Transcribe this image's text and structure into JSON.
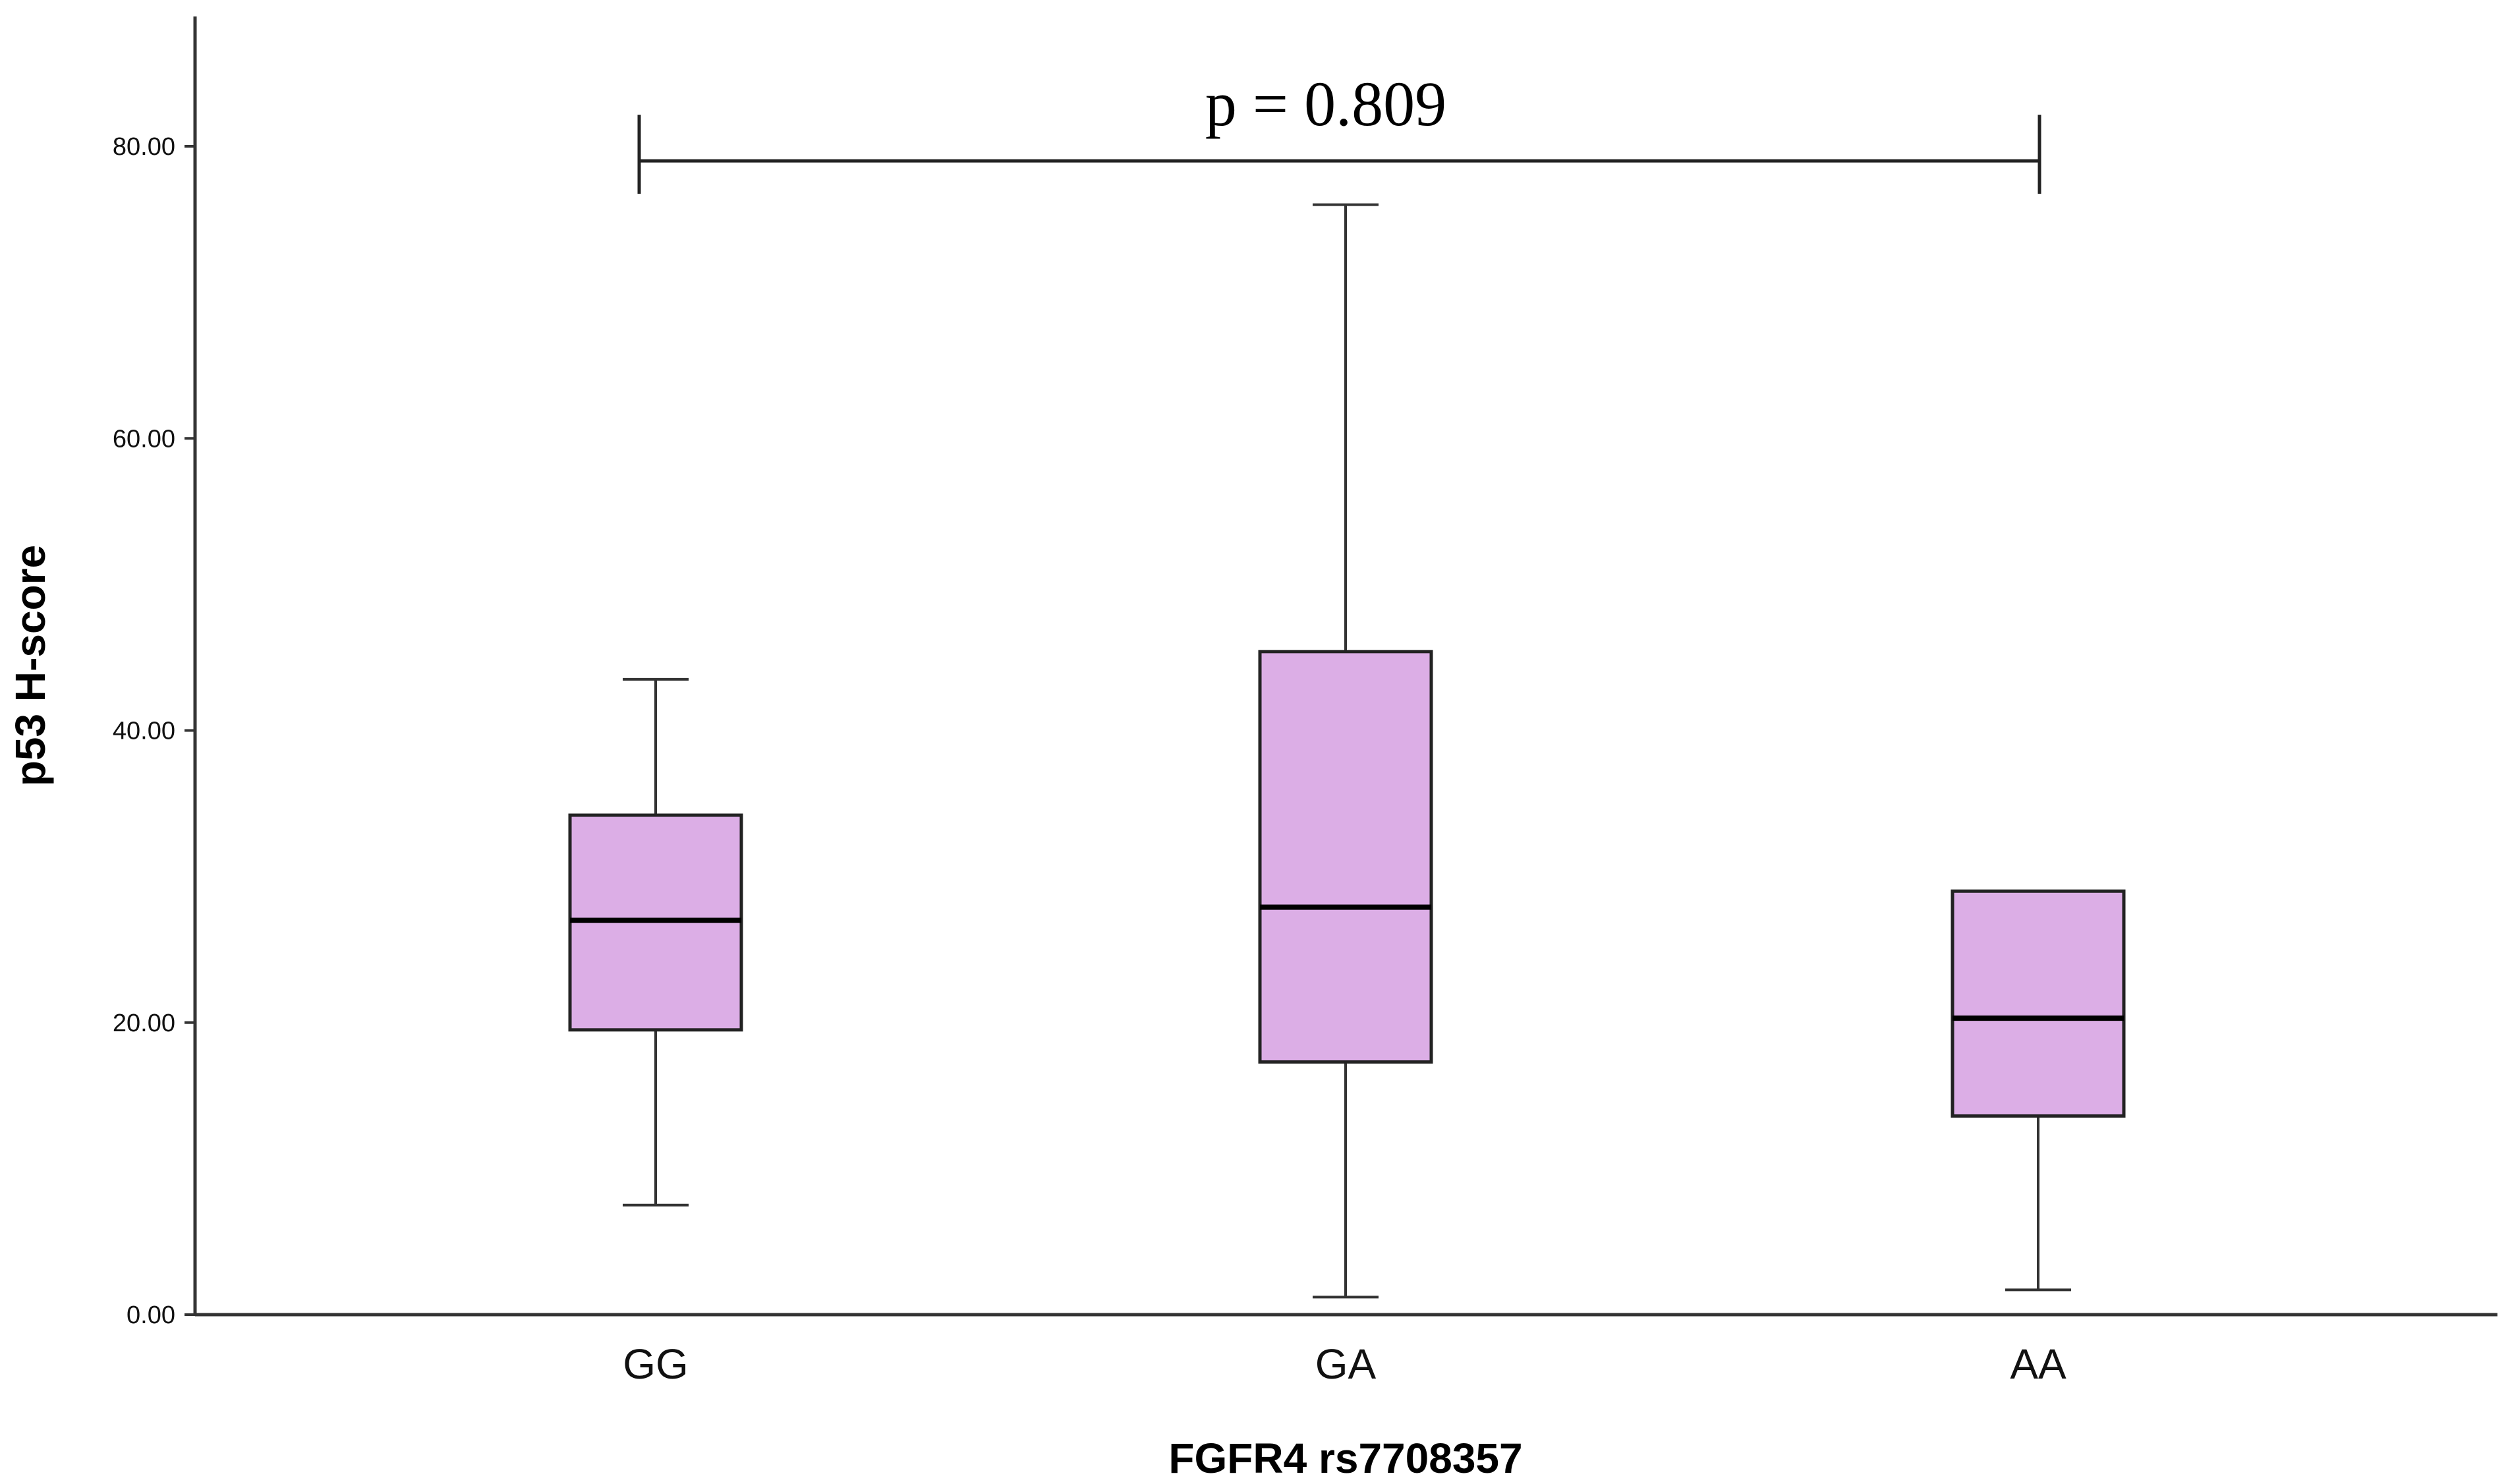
{
  "chart_data": {
    "type": "boxplot",
    "title": "",
    "xlabel": "FGFR4 rs7708357",
    "ylabel": "p53 H-score",
    "ylim": [
      0,
      88
    ],
    "yticks": [
      "0.00",
      "20.00",
      "40.00",
      "60.00",
      "80.00"
    ],
    "ytick_values": [
      0,
      20,
      40,
      60,
      80
    ],
    "grid": false,
    "legend": "none",
    "box_color": "#dcaee6",
    "categories": [
      "GG",
      "GA",
      "AA"
    ],
    "boxes": [
      {
        "category": "GG",
        "whisker_low": 7.5,
        "q1": 19.5,
        "median": 27.0,
        "q3": 34.2,
        "whisker_high": 43.5
      },
      {
        "category": "GA",
        "whisker_low": 1.2,
        "q1": 17.3,
        "median": 27.9,
        "q3": 45.4,
        "whisker_high": 76.0
      },
      {
        "category": "AA",
        "whisker_low": 1.7,
        "q1": 13.6,
        "median": 20.3,
        "q3": 29.0,
        "whisker_high": null
      }
    ],
    "annotation": {
      "text": "p = 0.809",
      "from": "GG",
      "to": "AA",
      "y": 79.0
    }
  }
}
